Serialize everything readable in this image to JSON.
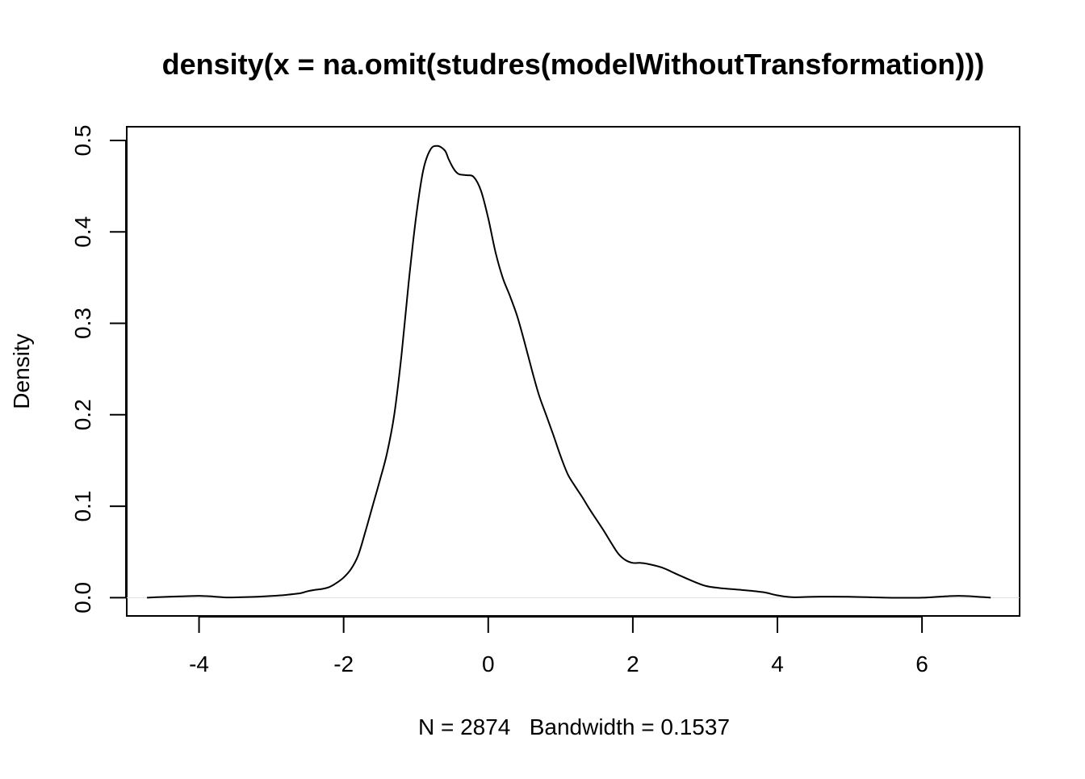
{
  "chart_data": {
    "type": "line",
    "title": "density(x = na.omit(studres(modelWithoutTransformation)))",
    "xlabel": "N = 2874   Bandwidth = 0.1537",
    "ylabel": "Density",
    "xlim": [
      -5.0,
      7.35
    ],
    "ylim": [
      -0.02,
      0.515
    ],
    "x_ticks": [
      -4,
      -2,
      0,
      2,
      4,
      6
    ],
    "x_tick_labels": [
      "-4",
      "-2",
      "0",
      "2",
      "4",
      "6"
    ],
    "y_ticks": [
      0.0,
      0.1,
      0.2,
      0.3,
      0.4,
      0.5
    ],
    "y_tick_labels": [
      "0.0",
      "0.1",
      "0.2",
      "0.3",
      "0.4",
      "0.5"
    ],
    "grid": false,
    "zero_line": true,
    "series": [
      {
        "color": "#000000",
        "x": [
          -4.72,
          -4.5,
          -4.2,
          -4.0,
          -3.8,
          -3.6,
          -3.4,
          -3.2,
          -3.0,
          -2.8,
          -2.6,
          -2.5,
          -2.4,
          -2.3,
          -2.2,
          -2.1,
          -2.0,
          -1.9,
          -1.8,
          -1.7,
          -1.6,
          -1.5,
          -1.4,
          -1.3,
          -1.2,
          -1.1,
          -1.0,
          -0.9,
          -0.8,
          -0.7,
          -0.6,
          -0.55,
          -0.5,
          -0.45,
          -0.4,
          -0.3,
          -0.2,
          -0.1,
          0.0,
          0.1,
          0.2,
          0.3,
          0.4,
          0.5,
          0.6,
          0.7,
          0.8,
          0.9,
          1.0,
          1.1,
          1.2,
          1.3,
          1.4,
          1.5,
          1.6,
          1.7,
          1.8,
          1.9,
          2.0,
          2.1,
          2.2,
          2.4,
          2.6,
          2.8,
          3.0,
          3.2,
          3.5,
          3.8,
          4.0,
          4.2,
          4.5,
          5.0,
          5.5,
          6.0,
          6.5,
          6.95
        ],
        "y": [
          0.0,
          0.0008,
          0.0015,
          0.002,
          0.0012,
          0.0002,
          0.0005,
          0.001,
          0.0018,
          0.003,
          0.0048,
          0.007,
          0.0085,
          0.0095,
          0.0115,
          0.016,
          0.022,
          0.031,
          0.046,
          0.072,
          0.1,
          0.128,
          0.158,
          0.2,
          0.265,
          0.345,
          0.415,
          0.467,
          0.49,
          0.494,
          0.489,
          0.48,
          0.472,
          0.466,
          0.463,
          0.462,
          0.46,
          0.445,
          0.415,
          0.378,
          0.35,
          0.33,
          0.308,
          0.28,
          0.25,
          0.222,
          0.2,
          0.178,
          0.155,
          0.135,
          0.122,
          0.11,
          0.097,
          0.085,
          0.073,
          0.06,
          0.048,
          0.041,
          0.038,
          0.038,
          0.037,
          0.033,
          0.026,
          0.019,
          0.013,
          0.0105,
          0.0085,
          0.006,
          0.0025,
          0.0005,
          0.001,
          0.001,
          0.0,
          0.0,
          0.002,
          0.0
        ]
      }
    ]
  }
}
